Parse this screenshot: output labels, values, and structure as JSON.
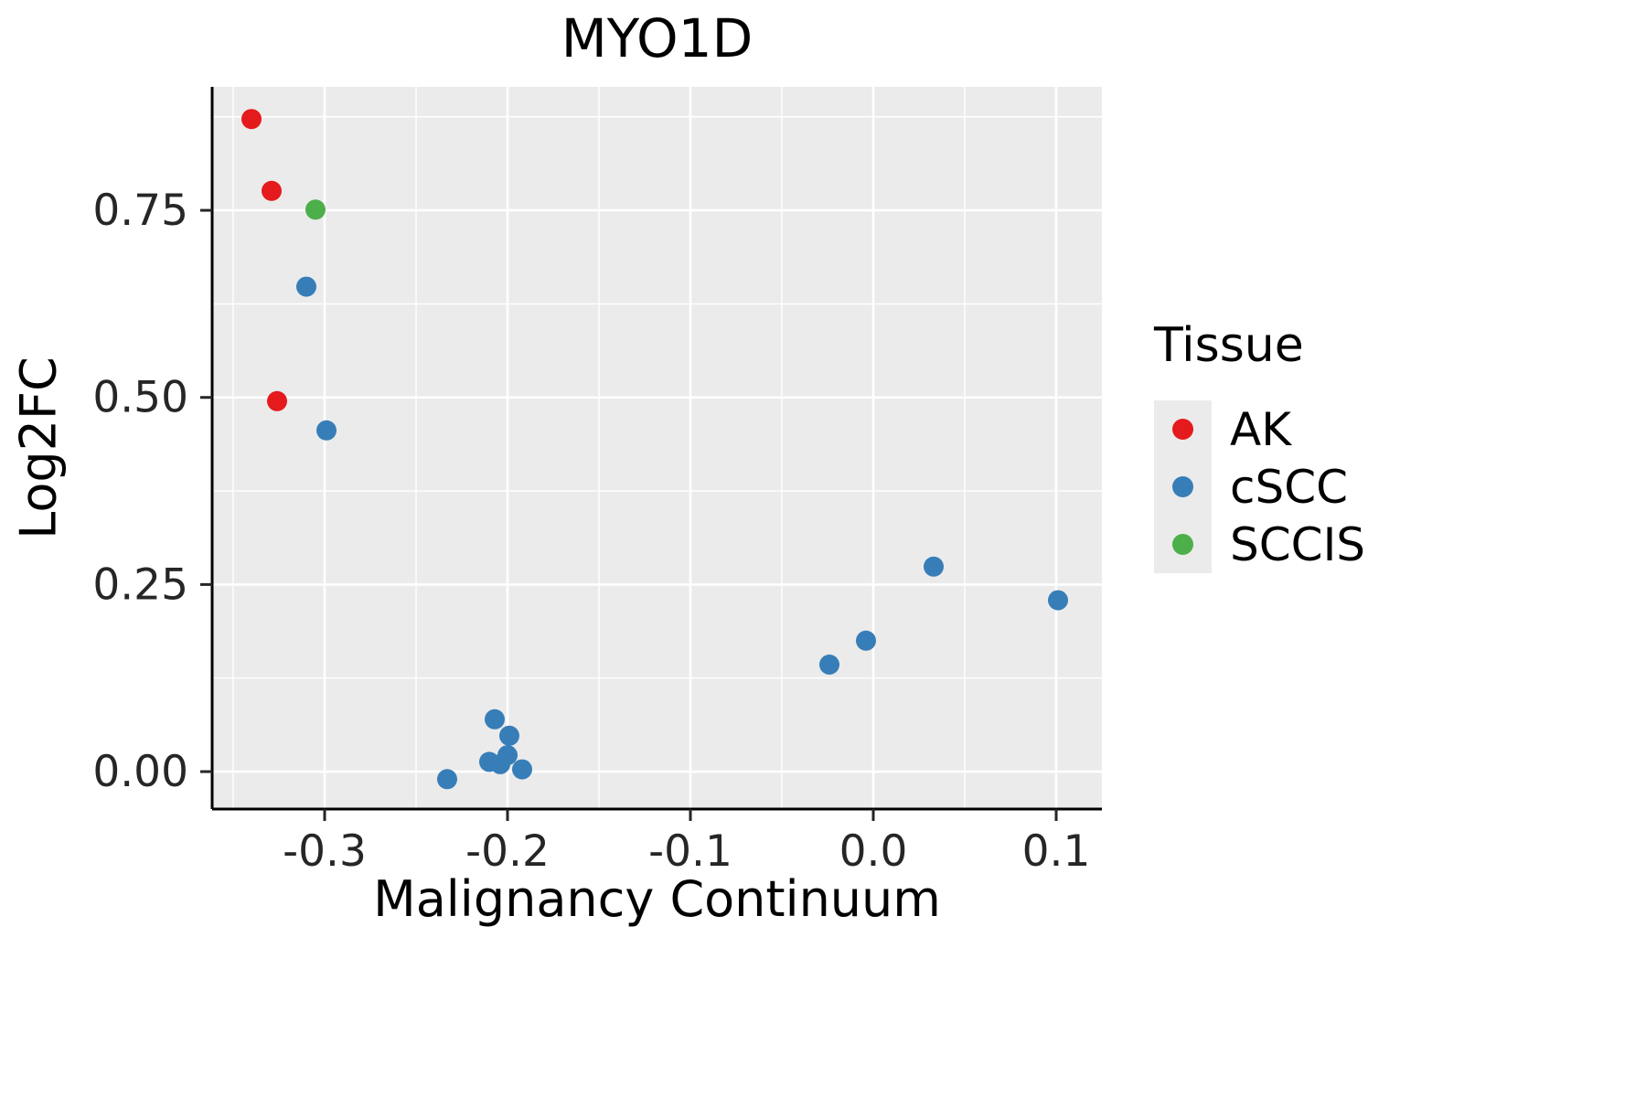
{
  "chart_data": {
    "type": "scatter",
    "title": "MYO1D",
    "xlabel": "Malignancy Continuum",
    "ylabel": "Log2FC",
    "legend_title": "Tissue",
    "legend_position": "right",
    "panel_background": "#ebebeb",
    "grid_color": "#ffffff",
    "axis_color": "#000000",
    "tick_text_color": "#262626",
    "xlim": [
      -0.3615,
      0.125
    ],
    "ylim": [
      -0.05,
      0.915
    ],
    "x_ticks": [
      -0.3,
      -0.2,
      -0.1,
      0,
      0.1
    ],
    "x_tick_labels": [
      "-0.3",
      "-0.2",
      "-0.1",
      "0.0",
      "0.1"
    ],
    "x_minor_ticks": [
      -0.35,
      -0.25,
      -0.15,
      -0.05,
      0.05
    ],
    "y_ticks": [
      0,
      0.25,
      0.5,
      0.75
    ],
    "y_tick_labels": [
      "0.00",
      "0.25",
      "0.50",
      "0.75"
    ],
    "y_minor_ticks": [
      0.125,
      0.375,
      0.625,
      0.875
    ],
    "series": [
      {
        "name": "AK",
        "color": "#e41a1c",
        "points": [
          [
            -0.34,
            0.872
          ],
          [
            -0.329,
            0.776
          ],
          [
            -0.326,
            0.495
          ]
        ]
      },
      {
        "name": "cSCC",
        "color": "#377eb8",
        "points": [
          [
            -0.31,
            0.648
          ],
          [
            -0.299,
            0.456
          ],
          [
            -0.233,
            -0.01
          ],
          [
            -0.21,
            0.013
          ],
          [
            -0.207,
            0.07
          ],
          [
            -0.204,
            0.01
          ],
          [
            -0.2,
            0.022
          ],
          [
            -0.199,
            0.048
          ],
          [
            -0.192,
            0.003
          ],
          [
            -0.024,
            0.143
          ],
          [
            -0.004,
            0.175
          ],
          [
            0.033,
            0.274
          ],
          [
            0.101,
            0.229
          ]
        ]
      },
      {
        "name": "SCCIS",
        "color": "#4daf4a",
        "points": [
          [
            -0.305,
            0.751
          ]
        ]
      }
    ]
  }
}
